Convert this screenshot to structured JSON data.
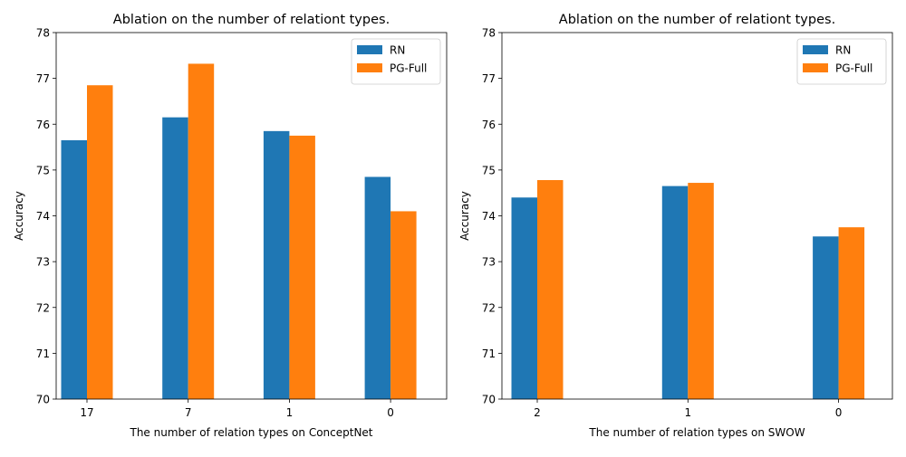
{
  "chart_data": [
    {
      "type": "bar",
      "title": "Ablation on the number of relationt types.",
      "xlabel": "The number of relation types on ConceptNet",
      "ylabel": "Accuracy",
      "ylim": [
        70,
        78
      ],
      "yticks": [
        "70",
        "71",
        "72",
        "73",
        "74",
        "75",
        "76",
        "77",
        "78"
      ],
      "categories": [
        "17",
        "7",
        "1",
        "0"
      ],
      "series": [
        {
          "name": "RN",
          "values": [
            75.65,
            76.15,
            75.85,
            74.85
          ],
          "color": "#1f77b4"
        },
        {
          "name": "PG-Full",
          "values": [
            76.85,
            77.32,
            75.75,
            74.1
          ],
          "color": "#ff7f0e"
        }
      ],
      "legend": "top-right",
      "grid": false
    },
    {
      "type": "bar",
      "title": "Ablation on the number of relationt types.",
      "xlabel": "The number of relation types on SWOW",
      "ylabel": "Accuracy",
      "ylim": [
        70,
        78
      ],
      "yticks": [
        "70",
        "71",
        "72",
        "73",
        "74",
        "75",
        "76",
        "77",
        "78"
      ],
      "categories": [
        "2",
        "1",
        "0"
      ],
      "series": [
        {
          "name": "RN",
          "values": [
            74.4,
            74.65,
            73.55
          ],
          "color": "#1f77b4"
        },
        {
          "name": "PG-Full",
          "values": [
            74.78,
            74.72,
            73.75
          ],
          "color": "#ff7f0e"
        }
      ],
      "legend": "top-right",
      "grid": false
    }
  ]
}
